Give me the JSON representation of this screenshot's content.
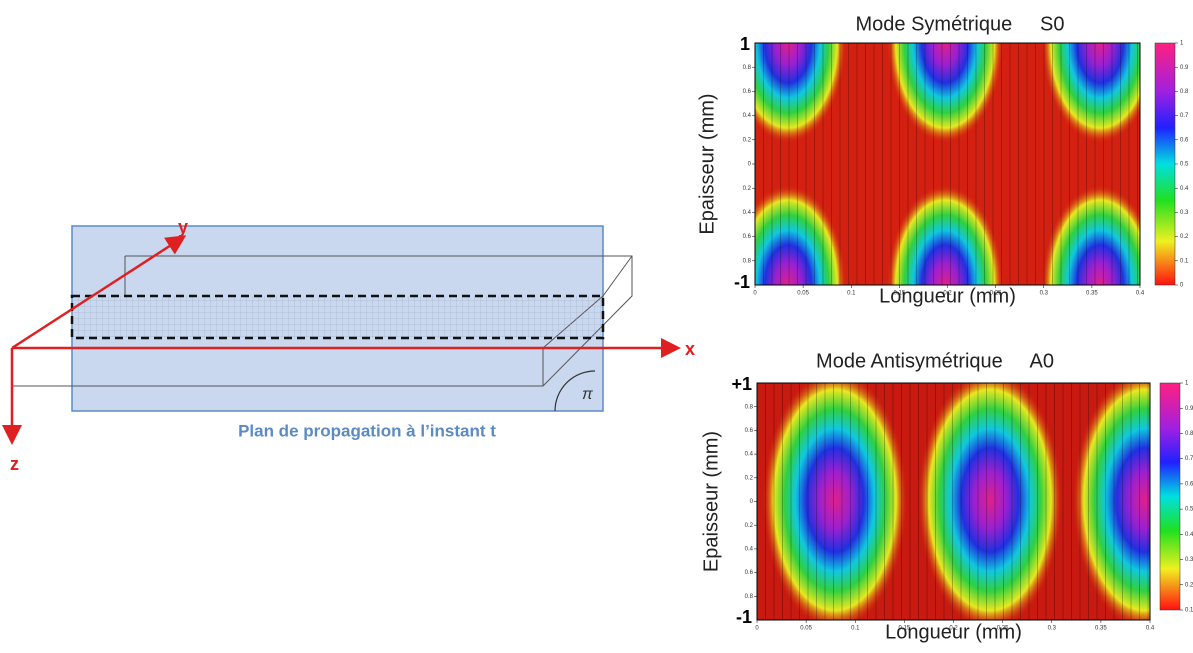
{
  "diagram": {
    "axis_x": "x",
    "axis_y": "y",
    "axis_z": "z",
    "angle_label": "π",
    "caption": "Plan de propagation à l’instant t"
  },
  "plots": [
    {
      "title": "Mode Symétrique     S0",
      "ylabel": "Epaisseur (mm)",
      "xlabel": "Longueur (mm)",
      "y_top": "1",
      "y_bottom": "-1",
      "xticks": [
        0,
        0.05,
        0.1,
        0.15,
        0.2,
        0.25,
        0.3,
        0.35,
        0.4
      ],
      "yticks": [
        0.8,
        0.6,
        0.4,
        0.2,
        0,
        0.2,
        0.4,
        0.6,
        0.8
      ],
      "colorbar_ticks": [
        1,
        0.9,
        0.8,
        0.7,
        0.6,
        0.5,
        0.4,
        0.3,
        0.2,
        0.1,
        0
      ]
    },
    {
      "title": "Mode Antisymétrique     A0",
      "ylabel": "Epaisseur (mm)",
      "xlabel": "Longueur (mm)",
      "y_top": "+1",
      "y_bottom": "-1",
      "xticks": [
        0,
        0.05,
        0.1,
        0.15,
        0.2,
        0.25,
        0.3,
        0.35,
        0.4
      ],
      "yticks": [
        0.8,
        0.6,
        0.4,
        0.2,
        0,
        0.2,
        0.4,
        0.6,
        0.8
      ],
      "colorbar_ticks": [
        1,
        0.9,
        0.8,
        0.7,
        0.6,
        0.5,
        0.4,
        0.3,
        0.2,
        0.1
      ]
    }
  ]
}
